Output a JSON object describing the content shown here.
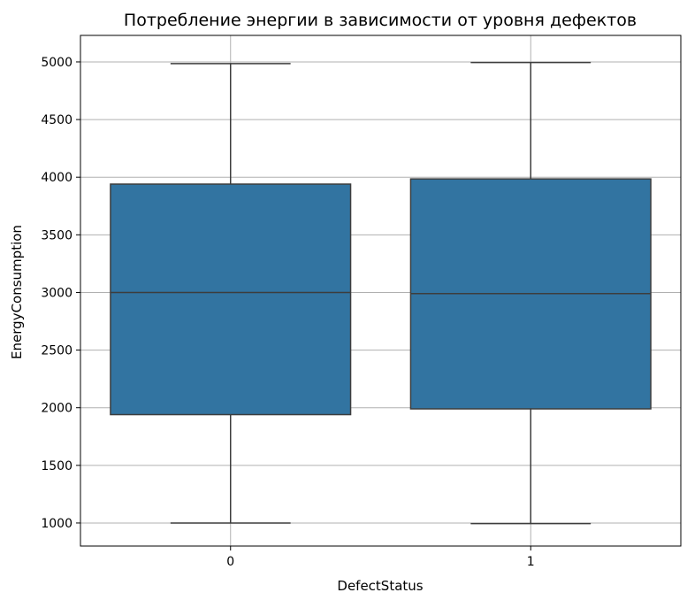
{
  "chart_data": {
    "type": "box",
    "title": "Потребление энергии в зависимости от уровня дефектов",
    "xlabel": "DefectStatus",
    "ylabel": "EnergyConsumption",
    "categories": [
      "0",
      "1"
    ],
    "boxes": [
      {
        "category": "0",
        "whisker_low": 1000,
        "q1": 1940,
        "median": 3000,
        "q3": 3940,
        "whisker_high": 4985
      },
      {
        "category": "1",
        "whisker_low": 995,
        "q1": 1990,
        "median": 2990,
        "q3": 3985,
        "whisker_high": 4995
      }
    ],
    "ylim": [
      800,
      5230
    ],
    "yticks": [
      1000,
      1500,
      2000,
      2500,
      3000,
      3500,
      4000,
      4500,
      5000
    ],
    "grid": true,
    "box_color": "#3274a1",
    "line_color": "#3d3d3d"
  }
}
